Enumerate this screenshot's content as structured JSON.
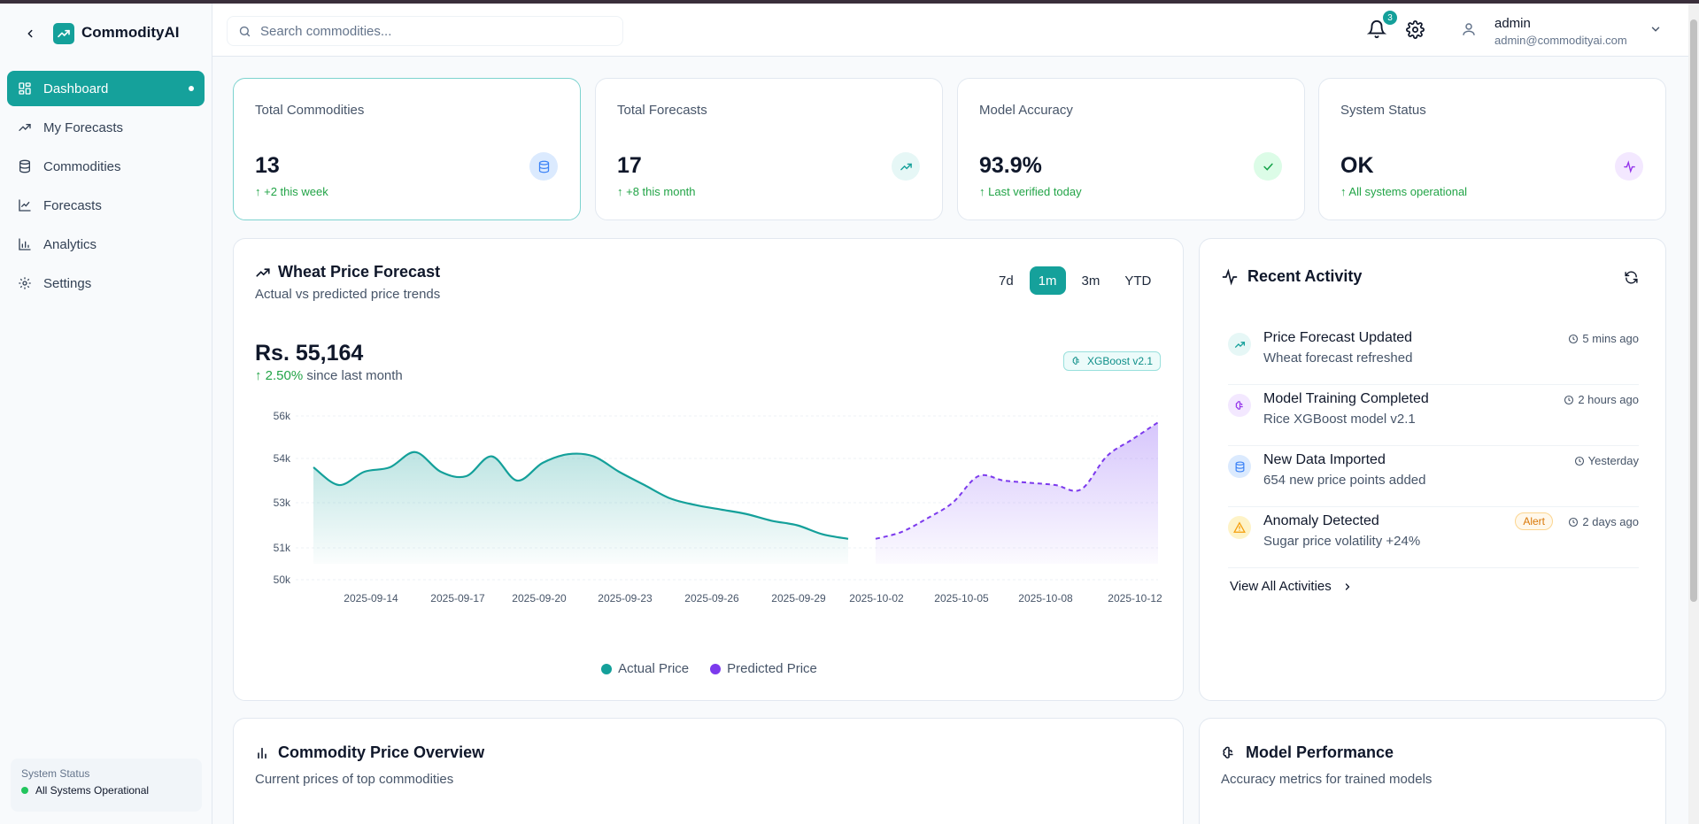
{
  "app": {
    "name": "CommodityAI"
  },
  "sidebar": {
    "items": [
      {
        "label": "Dashboard"
      },
      {
        "label": "My Forecasts"
      },
      {
        "label": "Commodities"
      },
      {
        "label": "Forecasts"
      },
      {
        "label": "Analytics"
      },
      {
        "label": "Settings"
      }
    ],
    "status_label": "System Status",
    "status_value": "All Systems Operational"
  },
  "header": {
    "search_placeholder": "Search commodities...",
    "notifications_count": "3",
    "user_name": "admin",
    "user_email": "admin@commodityai.com"
  },
  "stats": [
    {
      "title": "Total Commodities",
      "value": "13",
      "sub": "↑ +2 this week"
    },
    {
      "title": "Total Forecasts",
      "value": "17",
      "sub": "↑ +8 this month"
    },
    {
      "title": "Model Accuracy",
      "value": "93.9%",
      "sub": "↑ Last verified today"
    },
    {
      "title": "System Status",
      "value": "OK",
      "sub": "↑ All systems operational"
    }
  ],
  "forecast": {
    "title": "Wheat Price Forecast",
    "subtitle": "Actual vs predicted price trends",
    "ranges": [
      "7d",
      "1m",
      "3m",
      "YTD"
    ],
    "price": "Rs. 55,164",
    "change_pct": "↑ 2.50%",
    "change_text": "since last month",
    "model_badge": "XGBoost v2.1"
  },
  "chart_data": {
    "type": "area",
    "title": "Wheat Price Forecast",
    "y_ticks": [
      "56k",
      "54k",
      "53k",
      "51k",
      "50k"
    ],
    "x_ticks": [
      "2025-09-14",
      "2025-09-17",
      "2025-09-20",
      "2025-09-23",
      "2025-09-26",
      "2025-09-29",
      "2025-10-02",
      "2025-10-05",
      "2025-10-08",
      "2025-10-12"
    ],
    "series": [
      {
        "name": "Actual Price",
        "color": "#14a09a",
        "values": [
          53800,
          53400,
          53700,
          53800,
          54300,
          53700,
          53600,
          54100,
          53500,
          53900,
          54200,
          54100,
          53700,
          53400,
          53100,
          52900,
          52700,
          52500,
          52200,
          52000,
          51600,
          51400
        ]
      },
      {
        "name": "Predicted Price",
        "color": "#7c3aed",
        "values": [
          51400,
          51700,
          52300,
          53000,
          53600,
          53500,
          53450,
          53400,
          53300,
          54100,
          54900,
          55700
        ]
      }
    ]
  },
  "activity": {
    "title": "Recent Activity",
    "items": [
      {
        "title": "Price Forecast Updated",
        "desc": "Wheat forecast refreshed",
        "time": "5 mins ago"
      },
      {
        "title": "Model Training Completed",
        "desc": "Rice XGBoost model v2.1",
        "time": "2 hours ago"
      },
      {
        "title": "New Data Imported",
        "desc": "654 new price points added",
        "time": "Yesterday"
      },
      {
        "title": "Anomaly Detected",
        "desc": "Sugar price volatility +24%",
        "time": "2 days ago",
        "badge": "Alert"
      }
    ],
    "view_all": "View All Activities"
  },
  "overview": {
    "title": "Commodity Price Overview",
    "subtitle": "Current prices of top commodities"
  },
  "performance": {
    "title": "Model Performance",
    "subtitle": "Accuracy metrics for trained models"
  }
}
